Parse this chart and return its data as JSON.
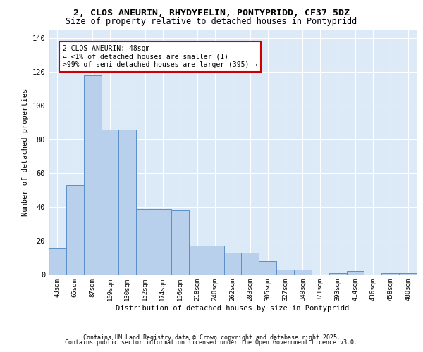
{
  "title_line1": "2, CLOS ANEURIN, RHYDYFELIN, PONTYPRIDD, CF37 5DZ",
  "title_line2": "Size of property relative to detached houses in Pontypridd",
  "xlabel": "Distribution of detached houses by size in Pontypridd",
  "ylabel": "Number of detached properties",
  "categories": [
    "43sqm",
    "65sqm",
    "87sqm",
    "109sqm",
    "130sqm",
    "152sqm",
    "174sqm",
    "196sqm",
    "218sqm",
    "240sqm",
    "262sqm",
    "283sqm",
    "305sqm",
    "327sqm",
    "349sqm",
    "371sqm",
    "393sqm",
    "414sqm",
    "436sqm",
    "458sqm",
    "480sqm"
  ],
  "values": [
    16,
    53,
    118,
    86,
    86,
    39,
    39,
    38,
    17,
    17,
    13,
    13,
    8,
    3,
    3,
    0,
    1,
    2,
    0,
    1,
    1
  ],
  "bar_color": "#b8d0eb",
  "bar_edge_color": "#5b8fc9",
  "background_color": "#dce9f7",
  "plot_bg_color": "#dce9f7",
  "grid_color": "#ffffff",
  "annotation_line1": "2 CLOS ANEURIN: 48sqm",
  "annotation_line2": "← <1% of detached houses are smaller (1)",
  "annotation_line3": ">99% of semi-detached houses are larger (395) →",
  "vline_color": "#cc0000",
  "annotation_box_color": "#ffffff",
  "annotation_box_edge": "#cc0000",
  "ylim": [
    0,
    145
  ],
  "yticks": [
    0,
    20,
    40,
    60,
    80,
    100,
    120,
    140
  ],
  "footer_line1": "Contains HM Land Registry data © Crown copyright and database right 2025.",
  "footer_line2": "Contains public sector information licensed under the Open Government Licence v3.0."
}
